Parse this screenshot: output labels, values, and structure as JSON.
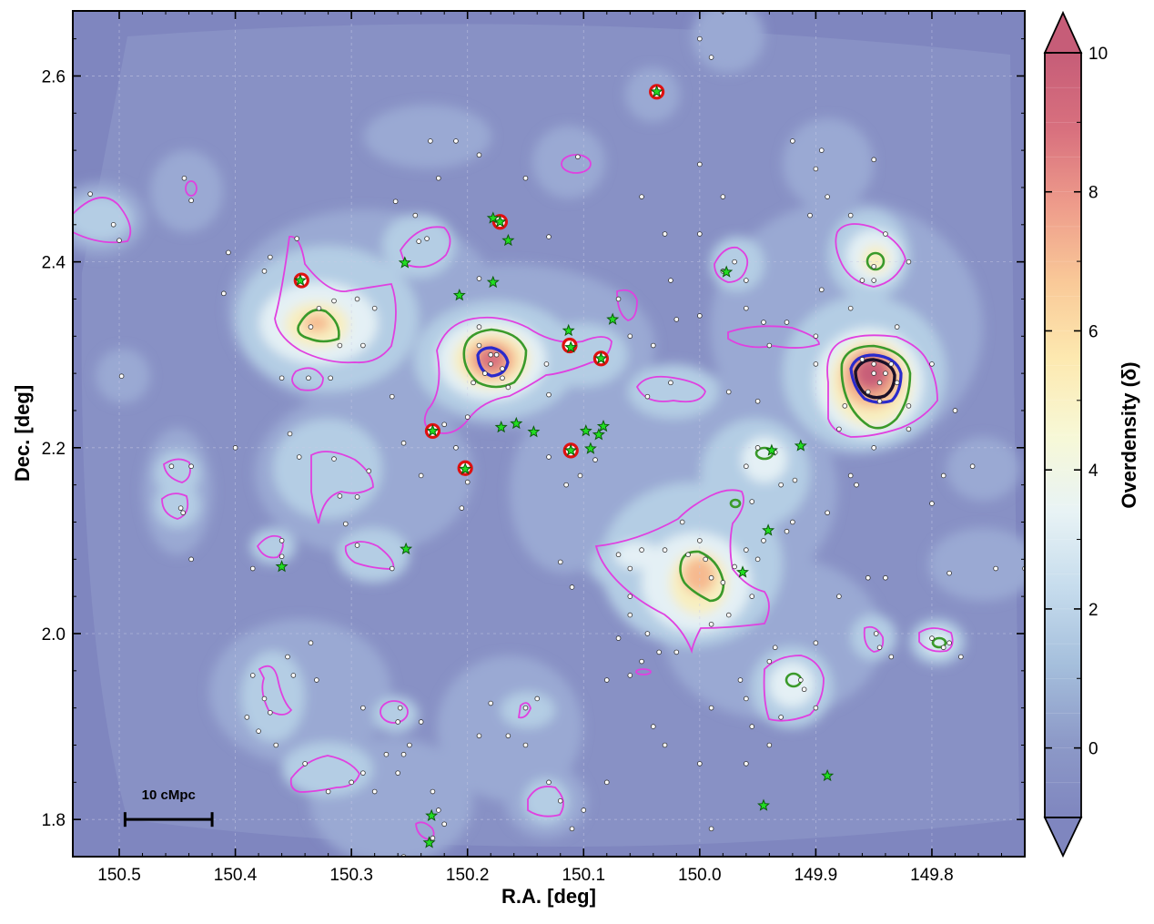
{
  "chart_data": {
    "type": "heatmap",
    "title": "",
    "xlabel": "R.A. [deg]",
    "ylabel": "Dec. [deg]",
    "xlim": [
      150.54,
      149.72
    ],
    "ylim": [
      1.76,
      2.67
    ],
    "x_inverted": true,
    "x_ticks": [
      150.5,
      150.4,
      150.3,
      150.2,
      150.1,
      150.0,
      149.9,
      149.8
    ],
    "x_tick_labels": [
      "150.5",
      "150.4",
      "150.3",
      "150.2",
      "150.1",
      "150.0",
      "149.9",
      "149.8"
    ],
    "y_ticks": [
      1.8,
      2.0,
      2.2,
      2.4,
      2.6
    ],
    "y_tick_labels": [
      "1.8",
      "2.0",
      "2.2",
      "2.4",
      "2.6"
    ],
    "grid": true,
    "colorbar": {
      "label": "Overdensity (δ)",
      "range": [
        -1,
        10
      ],
      "ticks": [
        0,
        2,
        4,
        6,
        8,
        10
      ],
      "tick_labels": [
        "0",
        "2",
        "4",
        "6",
        "8",
        "10"
      ],
      "extend": "both",
      "colormap_stops": [
        "#7f86bf",
        "#8d9ac8",
        "#a5bfdc",
        "#c6dced",
        "#e8f3f5",
        "#f7f8d6",
        "#fde9b0",
        "#f9c998",
        "#ee9c8b",
        "#d8707e",
        "#c65d78"
      ]
    },
    "scale_bar": {
      "label": "10 cMpc",
      "ra_start": 150.495,
      "ra_end": 150.42,
      "dec": 1.8
    },
    "contour_levels": [
      {
        "level": "magenta",
        "color": "#e040e0"
      },
      {
        "level": "green",
        "color": "#3a9a2a"
      },
      {
        "level": "blue",
        "color": "#2a2acc"
      },
      {
        "level": "black",
        "color": "#1a1028"
      }
    ],
    "density_peaks": [
      {
        "ra": 149.845,
        "dec": 2.275,
        "delta": 9.5
      },
      {
        "ra": 150.18,
        "dec": 2.29,
        "delta": 8.5
      },
      {
        "ra": 150.335,
        "dec": 2.33,
        "delta": 5.5
      },
      {
        "ra": 149.99,
        "dec": 2.065,
        "delta": 6.5
      },
      {
        "ra": 149.85,
        "dec": 2.4,
        "delta": 4.8
      },
      {
        "ra": 150.24,
        "dec": 2.43,
        "delta": 3.5
      },
      {
        "ra": 149.915,
        "dec": 1.945,
        "delta": 4.0
      },
      {
        "ra": 149.785,
        "dec": 1.99,
        "delta": 3.5
      },
      {
        "ra": 150.26,
        "dec": 2.11,
        "delta": 3.0
      },
      {
        "ra": 150.08,
        "dec": 2.26,
        "delta": 3.0
      }
    ],
    "red_circle_sources": [
      {
        "ra": 150.037,
        "dec": 2.583
      },
      {
        "ra": 150.172,
        "dec": 2.443
      },
      {
        "ra": 150.343,
        "dec": 2.38
      },
      {
        "ra": 150.112,
        "dec": 2.31
      },
      {
        "ra": 150.085,
        "dec": 2.296
      },
      {
        "ra": 150.23,
        "dec": 2.218
      },
      {
        "ra": 150.111,
        "dec": 2.197
      },
      {
        "ra": 150.202,
        "dec": 2.178
      }
    ],
    "star_sources": [
      {
        "ra": 150.178,
        "dec": 2.447
      },
      {
        "ra": 150.165,
        "dec": 2.423
      },
      {
        "ra": 150.254,
        "dec": 2.399
      },
      {
        "ra": 150.178,
        "dec": 2.378
      },
      {
        "ra": 150.207,
        "dec": 2.364
      },
      {
        "ra": 149.977,
        "dec": 2.389
      },
      {
        "ra": 150.075,
        "dec": 2.338
      },
      {
        "ra": 150.113,
        "dec": 2.326
      },
      {
        "ra": 150.111,
        "dec": 2.308
      },
      {
        "ra": 150.085,
        "dec": 2.296
      },
      {
        "ra": 150.171,
        "dec": 2.222
      },
      {
        "ra": 150.158,
        "dec": 2.226
      },
      {
        "ra": 150.143,
        "dec": 2.217
      },
      {
        "ra": 150.098,
        "dec": 2.218
      },
      {
        "ra": 150.087,
        "dec": 2.214
      },
      {
        "ra": 150.083,
        "dec": 2.223
      },
      {
        "ra": 150.094,
        "dec": 2.199
      },
      {
        "ra": 150.111,
        "dec": 2.197
      },
      {
        "ra": 150.202,
        "dec": 2.177
      },
      {
        "ra": 150.23,
        "dec": 2.218
      },
      {
        "ra": 150.344,
        "dec": 2.38
      },
      {
        "ra": 150.172,
        "dec": 2.443
      },
      {
        "ra": 150.037,
        "dec": 2.583
      },
      {
        "ra": 149.938,
        "dec": 2.197
      },
      {
        "ra": 149.913,
        "dec": 2.202
      },
      {
        "ra": 149.941,
        "dec": 2.111
      },
      {
        "ra": 149.963,
        "dec": 2.066
      },
      {
        "ra": 150.253,
        "dec": 2.091
      },
      {
        "ra": 150.36,
        "dec": 2.072
      },
      {
        "ra": 149.89,
        "dec": 1.847
      },
      {
        "ra": 149.945,
        "dec": 1.815
      },
      {
        "ra": 150.231,
        "dec": 1.804
      },
      {
        "ra": 150.233,
        "dec": 1.775
      }
    ],
    "galaxy_points": [
      [
        150.525,
        2.473
      ],
      [
        150.5,
        2.423
      ],
      [
        150.505,
        2.44
      ],
      [
        150.444,
        2.49
      ],
      [
        150.438,
        2.466
      ],
      [
        150.406,
        2.41
      ],
      [
        150.41,
        2.366
      ],
      [
        150.375,
        2.39
      ],
      [
        150.37,
        2.405
      ],
      [
        150.347,
        2.425
      ],
      [
        150.335,
        2.33
      ],
      [
        150.328,
        2.35
      ],
      [
        150.315,
        2.358
      ],
      [
        150.31,
        2.31
      ],
      [
        150.29,
        2.31
      ],
      [
        150.295,
        2.36
      ],
      [
        150.28,
        2.35
      ],
      [
        150.318,
        2.275
      ],
      [
        150.337,
        2.275
      ],
      [
        150.36,
        2.275
      ],
      [
        150.242,
        2.422
      ],
      [
        150.235,
        2.425
      ],
      [
        150.245,
        2.45
      ],
      [
        150.19,
        2.382
      ],
      [
        150.19,
        2.33
      ],
      [
        150.18,
        2.3
      ],
      [
        150.19,
        2.31
      ],
      [
        150.185,
        2.28
      ],
      [
        150.18,
        2.29
      ],
      [
        150.17,
        2.285
      ],
      [
        150.175,
        2.3
      ],
      [
        150.17,
        2.275
      ],
      [
        150.195,
        2.27
      ],
      [
        150.165,
        2.265
      ],
      [
        150.132,
        2.29
      ],
      [
        150.13,
        2.257
      ],
      [
        150.2,
        2.233
      ],
      [
        150.21,
        2.2
      ],
      [
        150.22,
        2.225
      ],
      [
        150.255,
        2.205
      ],
      [
        150.265,
        2.255
      ],
      [
        150.24,
        2.17
      ],
      [
        150.2,
        2.163
      ],
      [
        150.205,
        2.135
      ],
      [
        150.353,
        2.215
      ],
      [
        150.345,
        2.19
      ],
      [
        150.315,
        2.188
      ],
      [
        150.31,
        2.148
      ],
      [
        150.305,
        2.118
      ],
      [
        150.295,
        2.147
      ],
      [
        150.285,
        2.175
      ],
      [
        150.36,
        2.1
      ],
      [
        150.36,
        2.083
      ],
      [
        150.295,
        2.095
      ],
      [
        150.265,
        2.07
      ],
      [
        150.385,
        2.07
      ],
      [
        150.455,
        2.18
      ],
      [
        150.438,
        2.18
      ],
      [
        150.447,
        2.135
      ],
      [
        150.445,
        2.13
      ],
      [
        150.438,
        2.08
      ],
      [
        150.498,
        2.277
      ],
      [
        150.4,
        2.2
      ],
      [
        150.262,
        2.465
      ],
      [
        150.21,
        2.53
      ],
      [
        150.232,
        2.53
      ],
      [
        150.225,
        2.49
      ],
      [
        150.19,
        2.515
      ],
      [
        150.13,
        2.427
      ],
      [
        150.15,
        2.49
      ],
      [
        150.105,
        2.513
      ],
      [
        150.04,
        2.583
      ],
      [
        150.13,
        2.19
      ],
      [
        150.115,
        2.16
      ],
      [
        150.103,
        2.17
      ],
      [
        150.09,
        2.187
      ],
      [
        150.11,
        2.05
      ],
      [
        150.12,
        2.077
      ],
      [
        150.05,
        2.09
      ],
      [
        150.07,
        2.085
      ],
      [
        150.06,
        2.04
      ],
      [
        150.06,
        2.07
      ],
      [
        150.0,
        2.1
      ],
      [
        150.015,
        2.12
      ],
      [
        150.03,
        2.09
      ],
      [
        150.01,
        2.085
      ],
      [
        149.995,
        2.08
      ],
      [
        149.99,
        2.06
      ],
      [
        149.98,
        2.055
      ],
      [
        149.97,
        2.072
      ],
      [
        149.96,
        2.09
      ],
      [
        149.945,
        2.1
      ],
      [
        149.955,
        2.04
      ],
      [
        149.975,
        2.02
      ],
      [
        149.99,
        2.01
      ],
      [
        150.06,
        2.02
      ],
      [
        150.07,
        1.995
      ],
      [
        150.045,
        2.0
      ],
      [
        149.92,
        2.12
      ],
      [
        149.93,
        2.16
      ],
      [
        149.95,
        2.08
      ],
      [
        149.955,
        2.142
      ],
      [
        149.935,
        2.195
      ],
      [
        149.95,
        2.2
      ],
      [
        149.96,
        2.18
      ],
      [
        149.918,
        2.165
      ],
      [
        149.925,
        2.11
      ],
      [
        149.89,
        2.13
      ],
      [
        149.87,
        2.17
      ],
      [
        149.88,
        2.22
      ],
      [
        149.865,
        2.16
      ],
      [
        149.845,
        2.27
      ],
      [
        149.85,
        2.29
      ],
      [
        149.84,
        2.28
      ],
      [
        149.855,
        2.26
      ],
      [
        149.835,
        2.29
      ],
      [
        149.85,
        2.28
      ],
      [
        149.86,
        2.295
      ],
      [
        149.845,
        2.25
      ],
      [
        149.83,
        2.27
      ],
      [
        149.875,
        2.245
      ],
      [
        149.8,
        2.29
      ],
      [
        149.82,
        2.22
      ],
      [
        149.85,
        2.2
      ],
      [
        149.82,
        2.245
      ],
      [
        149.87,
        2.35
      ],
      [
        149.895,
        2.37
      ],
      [
        149.85,
        2.38
      ],
      [
        149.84,
        2.43
      ],
      [
        149.87,
        2.45
      ],
      [
        149.86,
        2.38
      ],
      [
        149.85,
        2.395
      ],
      [
        149.9,
        2.5
      ],
      [
        149.895,
        2.52
      ],
      [
        149.85,
        2.51
      ],
      [
        149.98,
        2.47
      ],
      [
        150.0,
        2.43
      ],
      [
        150.025,
        2.38
      ],
      [
        150.03,
        2.43
      ],
      [
        150.05,
        2.47
      ],
      [
        149.96,
        2.38
      ],
      [
        149.97,
        2.4
      ],
      [
        149.98,
        2.39
      ],
      [
        150.0,
        2.342
      ],
      [
        150.02,
        2.338
      ],
      [
        150.04,
        2.31
      ],
      [
        150.06,
        2.32
      ],
      [
        149.96,
        2.35
      ],
      [
        149.94,
        2.31
      ],
      [
        149.945,
        2.335
      ],
      [
        149.925,
        2.335
      ],
      [
        149.9,
        2.32
      ],
      [
        149.9,
        2.29
      ],
      [
        149.95,
        2.25
      ],
      [
        149.975,
        2.26
      ],
      [
        150.045,
        2.255
      ],
      [
        150.025,
        2.27
      ],
      [
        150.07,
        2.36
      ],
      [
        149.78,
        2.24
      ],
      [
        149.79,
        2.17
      ],
      [
        149.8,
        2.14
      ],
      [
        149.765,
        2.18
      ],
      [
        149.745,
        2.07
      ],
      [
        149.785,
        2.065
      ],
      [
        149.72,
        2.07
      ],
      [
        149.855,
        2.06
      ],
      [
        149.88,
        2.04
      ],
      [
        149.84,
        2.06
      ],
      [
        149.848,
        2.0
      ],
      [
        149.845,
        1.985
      ],
      [
        149.835,
        1.975
      ],
      [
        149.9,
        1.99
      ],
      [
        149.913,
        1.95
      ],
      [
        149.91,
        1.94
      ],
      [
        149.9,
        1.92
      ],
      [
        149.93,
        1.91
      ],
      [
        149.935,
        1.985
      ],
      [
        149.94,
        1.97
      ],
      [
        149.96,
        1.93
      ],
      [
        149.965,
        1.95
      ],
      [
        149.99,
        1.92
      ],
      [
        150.02,
        1.98
      ],
      [
        150.035,
        1.98
      ],
      [
        150.05,
        1.97
      ],
      [
        150.06,
        1.955
      ],
      [
        150.08,
        1.95
      ],
      [
        150.0,
        1.86
      ],
      [
        149.96,
        1.86
      ],
      [
        149.955,
        1.9
      ],
      [
        149.94,
        1.88
      ],
      [
        149.785,
        1.99
      ],
      [
        149.79,
        1.985
      ],
      [
        149.775,
        1.975
      ],
      [
        149.8,
        1.995
      ],
      [
        150.35,
        1.955
      ],
      [
        150.355,
        1.975
      ],
      [
        150.375,
        1.93
      ],
      [
        150.37,
        1.915
      ],
      [
        150.38,
        1.895
      ],
      [
        150.385,
        1.955
      ],
      [
        150.39,
        1.91
      ],
      [
        150.33,
        1.95
      ],
      [
        150.335,
        1.99
      ],
      [
        150.365,
        1.88
      ],
      [
        150.34,
        1.86
      ],
      [
        150.32,
        1.83
      ],
      [
        150.3,
        1.84
      ],
      [
        150.29,
        1.85
      ],
      [
        150.28,
        1.83
      ],
      [
        150.26,
        1.85
      ],
      [
        150.25,
        1.88
      ],
      [
        150.23,
        1.83
      ],
      [
        150.225,
        1.81
      ],
      [
        150.22,
        1.795
      ],
      [
        150.23,
        1.78
      ],
      [
        150.255,
        1.76
      ],
      [
        150.255,
        1.87
      ],
      [
        150.27,
        1.87
      ],
      [
        150.29,
        1.92
      ],
      [
        150.258,
        1.92
      ],
      [
        150.26,
        1.905
      ],
      [
        150.24,
        1.905
      ],
      [
        150.13,
        1.84
      ],
      [
        150.12,
        1.82
      ],
      [
        150.1,
        1.81
      ],
      [
        150.11,
        1.79
      ],
      [
        150.15,
        1.88
      ],
      [
        150.165,
        1.89
      ],
      [
        150.18,
        1.925
      ],
      [
        150.19,
        1.89
      ],
      [
        150.15,
        1.92
      ],
      [
        150.14,
        1.93
      ],
      [
        150.08,
        1.84
      ],
      [
        150.04,
        1.9
      ],
      [
        150.03,
        1.88
      ],
      [
        149.99,
        1.79
      ],
      [
        149.92,
        2.53
      ],
      [
        149.905,
        2.45
      ],
      [
        149.89,
        2.47
      ],
      [
        150.0,
        2.505
      ],
      [
        150.0,
        2.64
      ],
      [
        149.98,
        2.67
      ],
      [
        149.99,
        2.62
      ],
      [
        149.8,
        2.68
      ],
      [
        149.82,
        2.4
      ],
      [
        149.83,
        2.33
      ]
    ]
  }
}
